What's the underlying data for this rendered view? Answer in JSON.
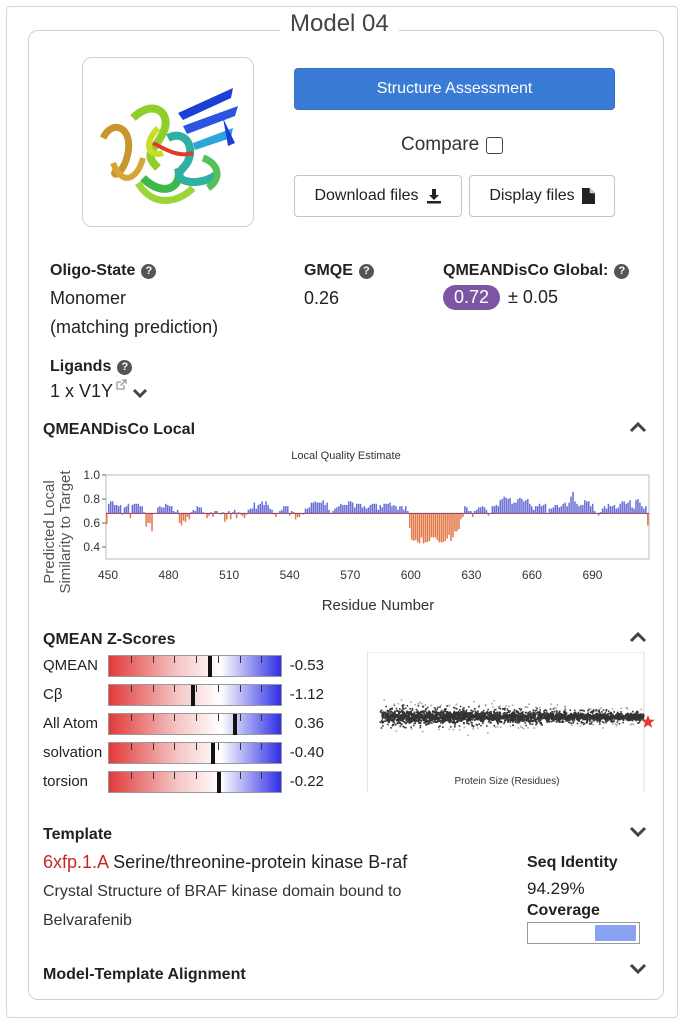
{
  "model": {
    "title": "Model 04"
  },
  "actions": {
    "structure_assessment": "Structure Assessment",
    "compare_label": "Compare",
    "download_label": "Download files",
    "display_label": "Display files"
  },
  "info": {
    "oligo_label": "Oligo-State",
    "oligo_value": "Monomer",
    "oligo_note": "(matching prediction)",
    "gmqe_label": "GMQE",
    "gmqe_value": "0.26",
    "qmean_global_label": "QMEANDisCo Global:",
    "qmean_global_value": "0.72",
    "qmean_global_err": "± 0.05",
    "ligands_label": "Ligands",
    "ligands_value": "1 x V1Y"
  },
  "local": {
    "heading": "QMEANDisCo Local",
    "chart_title": "Local Quality Estimate",
    "ylabel_1": "Predicted Local",
    "ylabel_2": "Similarity to Target",
    "xlabel": "Residue Number",
    "xticks": [
      "450",
      "480",
      "510",
      "540",
      "570",
      "600",
      "630",
      "660",
      "690"
    ],
    "yticks": [
      "1.0",
      "0.8",
      "0.6",
      "0.4"
    ]
  },
  "chart_data": {
    "type": "bar",
    "title": "Local Quality Estimate",
    "xlabel": "Residue Number",
    "ylabel": "Predicted Local Similarity to Target",
    "xlim": [
      449,
      718
    ],
    "ylim": [
      0.3,
      1.0
    ],
    "baseline": 0.68,
    "values": [
      0.59,
      0.76,
      0.78,
      0.78,
      0.75,
      0.75,
      0.74,
      0.75,
      0.67,
      0.73,
      0.74,
      0.76,
      0.64,
      0.75,
      0.76,
      0.76,
      0.76,
      0.74,
      0.74,
      0.69,
      0.57,
      0.6,
      0.6,
      0.53,
      0.68,
      0.68,
      0.73,
      0.74,
      0.73,
      0.73,
      0.76,
      0.75,
      0.74,
      0.74,
      0.7,
      0.69,
      0.71,
      0.6,
      0.58,
      0.62,
      0.61,
      0.65,
      0.63,
      0.69,
      0.71,
      0.7,
      0.74,
      0.73,
      0.73,
      0.69,
      0.68,
      0.64,
      0.66,
      0.69,
      0.65,
      0.7,
      0.7,
      0.68,
      0.67,
      0.69,
      0.61,
      0.63,
      0.7,
      0.63,
      0.69,
      0.71,
      0.64,
      0.69,
      0.67,
      0.66,
      0.64,
      0.67,
      0.71,
      0.72,
      0.72,
      0.77,
      0.72,
      0.75,
      0.76,
      0.78,
      0.75,
      0.78,
      0.75,
      0.72,
      0.71,
      0.67,
      0.65,
      0.68,
      0.7,
      0.71,
      0.74,
      0.74,
      0.74,
      0.66,
      0.7,
      0.69,
      0.63,
      0.65,
      0.65,
      0.68,
      0.67,
      0.72,
      0.72,
      0.73,
      0.77,
      0.77,
      0.78,
      0.77,
      0.77,
      0.77,
      0.79,
      0.75,
      0.77,
      0.71,
      0.68,
      0.7,
      0.72,
      0.73,
      0.74,
      0.76,
      0.75,
      0.75,
      0.75,
      0.78,
      0.78,
      0.77,
      0.73,
      0.76,
      0.76,
      0.76,
      0.73,
      0.74,
      0.72,
      0.73,
      0.75,
      0.76,
      0.76,
      0.76,
      0.71,
      0.75,
      0.73,
      0.76,
      0.76,
      0.76,
      0.77,
      0.74,
      0.75,
      0.74,
      0.71,
      0.74,
      0.74,
      0.71,
      0.74,
      0.7,
      0.56,
      0.46,
      0.45,
      0.46,
      0.44,
      0.43,
      0.48,
      0.43,
      0.44,
      0.44,
      0.45,
      0.48,
      0.48,
      0.48,
      0.46,
      0.44,
      0.44,
      0.44,
      0.45,
      0.47,
      0.5,
      0.45,
      0.48,
      0.53,
      0.53,
      0.55,
      0.63,
      0.65,
      0.74,
      0.73,
      0.7,
      0.7,
      0.65,
      0.7,
      0.71,
      0.73,
      0.73,
      0.74,
      0.73,
      0.71,
      0.66,
      0.68,
      0.74,
      0.74,
      0.75,
      0.74,
      0.79,
      0.8,
      0.82,
      0.81,
      0.8,
      0.81,
      0.76,
      0.77,
      0.77,
      0.8,
      0.81,
      0.8,
      0.78,
      0.79,
      0.8,
      0.76,
      0.74,
      0.71,
      0.74,
      0.74,
      0.76,
      0.74,
      0.75,
      0.76,
      0.68,
      0.72,
      0.72,
      0.73,
      0.75,
      0.75,
      0.73,
      0.74,
      0.76,
      0.77,
      0.74,
      0.77,
      0.82,
      0.86,
      0.78,
      0.76,
      0.74,
      0.75,
      0.75,
      0.79,
      0.78,
      0.78,
      0.74,
      0.76,
      0.7,
      0.68,
      0.66,
      0.69,
      0.72,
      0.74,
      0.72,
      0.76,
      0.74,
      0.74,
      0.75,
      0.72,
      0.73,
      0.76,
      0.78,
      0.78,
      0.76,
      0.77,
      0.79,
      0.73,
      0.72,
      0.79,
      0.8,
      0.77,
      0.74,
      0.72,
      0.74,
      0.58
    ]
  },
  "zscores": {
    "heading": "QMEAN Z-Scores",
    "rows": [
      {
        "label": "QMEAN",
        "value": "-0.53",
        "score": -0.53
      },
      {
        "label": "Cβ",
        "value": "-1.12",
        "score": -1.12
      },
      {
        "label": "All Atom",
        "value": "0.36",
        "score": 0.36
      },
      {
        "label": "solvation",
        "value": "-0.40",
        "score": -0.4
      },
      {
        "label": "torsion",
        "value": "-0.22",
        "score": -0.22
      }
    ],
    "scatter_xlabel": "Protein Size (Residues)"
  },
  "template": {
    "heading": "Template",
    "id": "6xfp.1.A",
    "name": "Serine/threonine-protein kinase B-raf",
    "desc_1": "Crystal Structure of BRAF kinase domain bound to",
    "desc_2": "Belvarafenib",
    "seq_identity_label": "Seq Identity",
    "seq_identity_value": "94.29%",
    "coverage_label": "Coverage",
    "coverage_start": 0.6,
    "coverage_end": 0.97
  },
  "alignment": {
    "heading": "Model-Template Alignment"
  },
  "colors": {
    "primary": "#3a7bd5",
    "pill": "#7d56a3",
    "bar_high": "#6a6fd6",
    "bar_low": "#e47a4a",
    "template_id": "#c62828",
    "coverage": "#8aa3f0"
  }
}
